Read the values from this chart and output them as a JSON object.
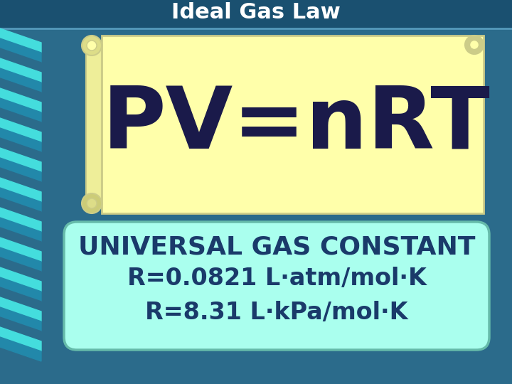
{
  "title": "Ideal Gas Law",
  "title_color": "#FFFFFF",
  "title_fontsize": 22,
  "bg_color": "#2B6B8B",
  "scroll_bg": "#FFFFAA",
  "scroll_border": "#CCCC88",
  "formula": "PV=nRT",
  "formula_color": "#1A1A4A",
  "formula_fontsize": 88,
  "box_bg": "#AAFFEE",
  "box_border": "#66BBAA",
  "ugc_line1": "UNIVERSAL GAS CONSTANT",
  "ugc_line2": "R=0.0821 L·atm/mol·K",
  "ugc_line3": "R=8.31 L·kPa/mol·K",
  "ugc_color": "#1A3A6A",
  "ugc_fontsize1": 26,
  "ugc_fontsize2": 24,
  "stripe_color1": "#44DDDD",
  "stripe_color2": "#2288AA",
  "top_bar_color": "#1A5070"
}
